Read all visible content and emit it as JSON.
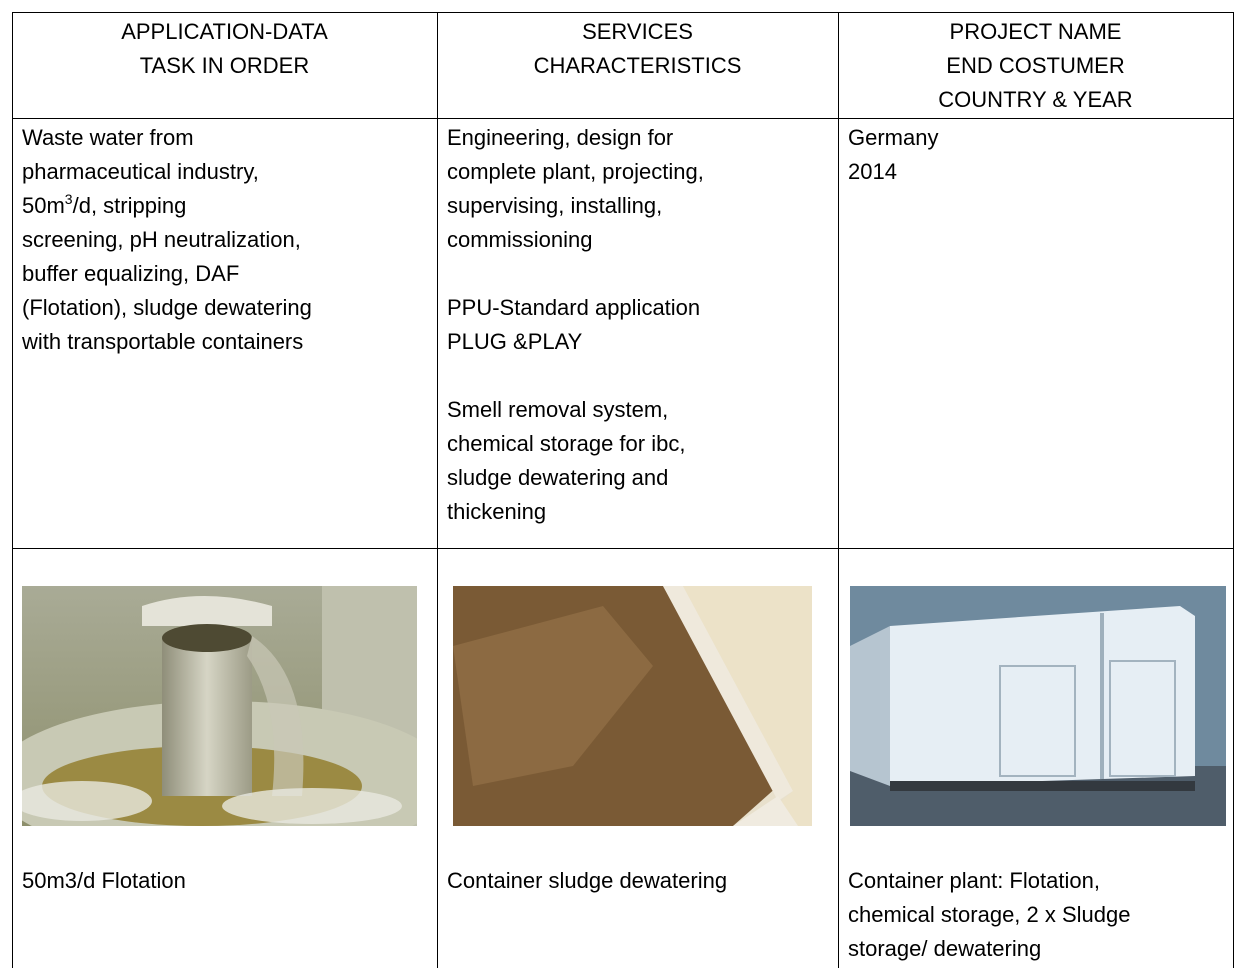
{
  "table": {
    "header": [
      [
        "APPLICATION-DATA",
        "TASK IN ORDER"
      ],
      [
        "SERVICES",
        "CHARACTERISTICS"
      ],
      [
        "PROJECT NAME",
        "END COSTUMER",
        "COUNTRY & YEAR"
      ]
    ],
    "rows": [
      [
        [
          "Waste water from",
          "pharmaceutical industry,",
          [
            "50m",
            "3",
            "/d, stripping"
          ],
          "screening, pH neutralization,",
          "buffer equalizing, DAF",
          "(Flotation), sludge dewatering",
          "with transportable containers"
        ],
        [
          [
            "Engineering, design for",
            "complete plant, projecting,",
            "supervising, installing,",
            "commissioning"
          ],
          [
            "PPU-Standard application",
            "PLUG &PLAY"
          ],
          [
            "Smell removal system,",
            "chemical storage for ibc,",
            "sludge dewatering and",
            "thickening"
          ]
        ],
        [
          "Germany",
          "2014"
        ]
      ],
      [
        [
          "50m3/d Flotation"
        ],
        [
          "Container sludge dewatering"
        ],
        [
          "Container plant: Flotation,",
          "chemical storage, 2 x Sludge",
          "storage/ dewatering"
        ]
      ]
    ]
  }
}
